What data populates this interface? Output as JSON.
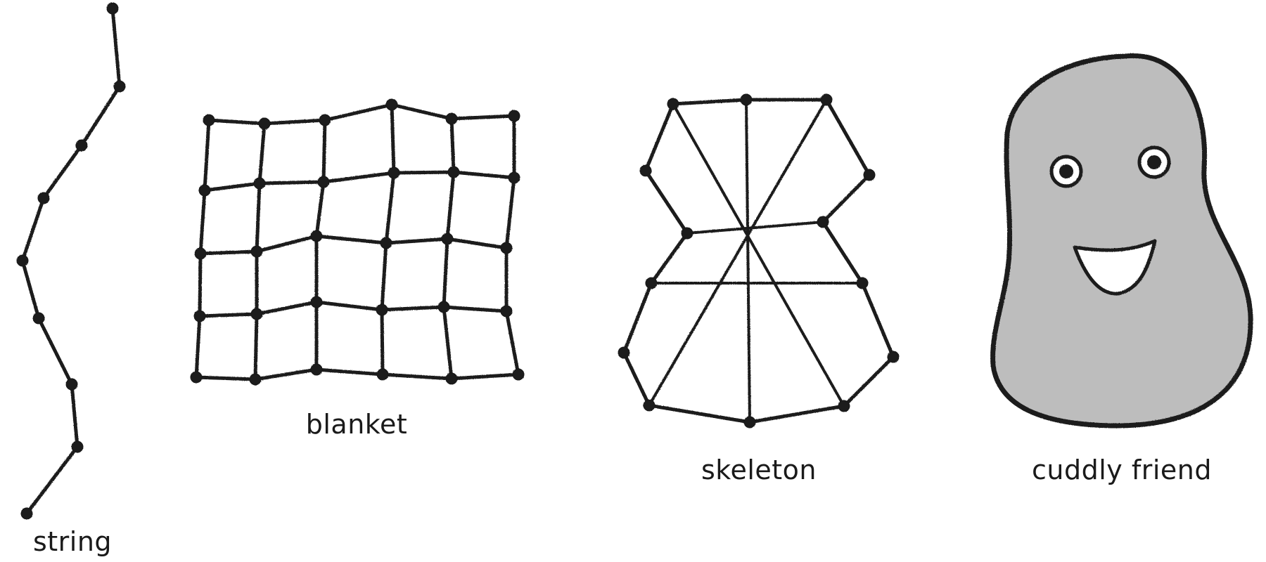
{
  "labels": {
    "string": "string",
    "blanket": "blanket",
    "skeleton": "skeleton",
    "cuddly_friend": "cuddly friend"
  },
  "colors": {
    "stroke": "#1a1a1a",
    "friend_fill": "#bdbdbd",
    "background": "#ffffff"
  }
}
